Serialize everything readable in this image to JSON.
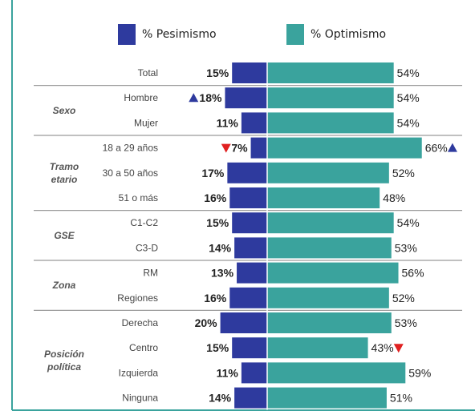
{
  "colors": {
    "pesimismo": "#2e3a9e",
    "optimismo": "#3aa39d",
    "border": "#3aa39d",
    "divider": "#9a9a9a",
    "up_marker": "#2e3a9e",
    "down_marker": "#e02020",
    "text": "#333333"
  },
  "chart_data": {
    "type": "bar",
    "orientation": "horizontal-diverging",
    "legend": [
      "% Pesimismo",
      "% Optimismo"
    ],
    "legend_position": "top",
    "groups": [
      {
        "name": "",
        "rows": [
          {
            "label": "Total",
            "pesimismo": 15,
            "optimismo": 54
          }
        ]
      },
      {
        "name": "Sexo",
        "rows": [
          {
            "label": "Hombre",
            "pesimismo": 18,
            "optimismo": 54,
            "pes_marker": "up"
          },
          {
            "label": "Mujer",
            "pesimismo": 11,
            "optimismo": 54
          }
        ]
      },
      {
        "name": "Tramo etario",
        "rows": [
          {
            "label": "18 a 29 años",
            "pesimismo": 7,
            "optimismo": 66,
            "pes_marker": "down",
            "opt_marker": "up"
          },
          {
            "label": "30 a 50 años",
            "pesimismo": 17,
            "optimismo": 52
          },
          {
            "label": "51 o más",
            "pesimismo": 16,
            "optimismo": 48
          }
        ]
      },
      {
        "name": "GSE",
        "rows": [
          {
            "label": "C1-C2",
            "pesimismo": 15,
            "optimismo": 54
          },
          {
            "label": "C3-D",
            "pesimismo": 14,
            "optimismo": 53
          }
        ]
      },
      {
        "name": "Zona",
        "rows": [
          {
            "label": "RM",
            "pesimismo": 13,
            "optimismo": 56
          },
          {
            "label": "Regiones",
            "pesimismo": 16,
            "optimismo": 52
          }
        ]
      },
      {
        "name": "Posición política",
        "rows": [
          {
            "label": "Derecha",
            "pesimismo": 20,
            "optimismo": 53
          },
          {
            "label": "Centro",
            "pesimismo": 15,
            "optimismo": 43,
            "opt_marker": "down"
          },
          {
            "label": "Izquierda",
            "pesimismo": 11,
            "optimismo": 59
          },
          {
            "label": "Ninguna",
            "pesimismo": 14,
            "optimismo": 51
          }
        ]
      }
    ],
    "value_suffix": "%"
  }
}
